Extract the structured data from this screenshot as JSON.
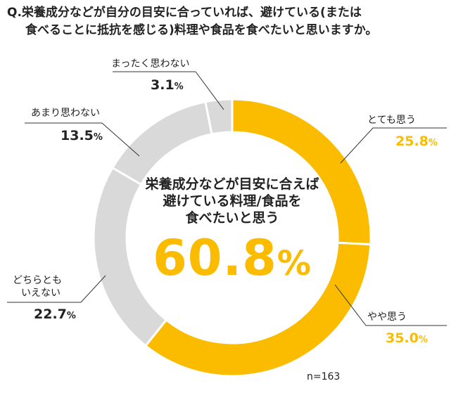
{
  "question": {
    "line1": "Q.栄養成分などが自分の目安に合っていれば、避けている(または",
    "line2": "食べることに抵抗を感じる)料理や食品を食べたいと思いますか。"
  },
  "center": {
    "line1": "栄養成分などが目安に合えば",
    "line2": "避けている料理/食品を",
    "line3": "食べたいと思う",
    "value": "60.8",
    "unit": "%"
  },
  "sample_size": "n=163",
  "colors": {
    "positive": "#FBBC00",
    "negative": "#D9D9D9"
  },
  "chart_data": {
    "type": "pie",
    "style": "donut",
    "title": "栄養成分などが目安に合えば避けている料理/食品を食べたいと思う",
    "unit": "%",
    "slices": [
      {
        "label": "とても思う",
        "value": 25.8,
        "display": "25.8",
        "color": "#FBBC00"
      },
      {
        "label": "やや思う",
        "value": 35.0,
        "display": "35.0",
        "color": "#FBBC00"
      },
      {
        "label": "どちらとも\nいえない",
        "label_line1": "どちらとも",
        "label_line2": "いえない",
        "value": 22.7,
        "display": "22.7",
        "color": "#D9D9D9"
      },
      {
        "label": "あまり思わない",
        "value": 13.5,
        "display": "13.5",
        "color": "#D9D9D9"
      },
      {
        "label": "まったく思わない",
        "value": 3.1,
        "display": "3.1",
        "color": "#D9D9D9"
      }
    ]
  }
}
